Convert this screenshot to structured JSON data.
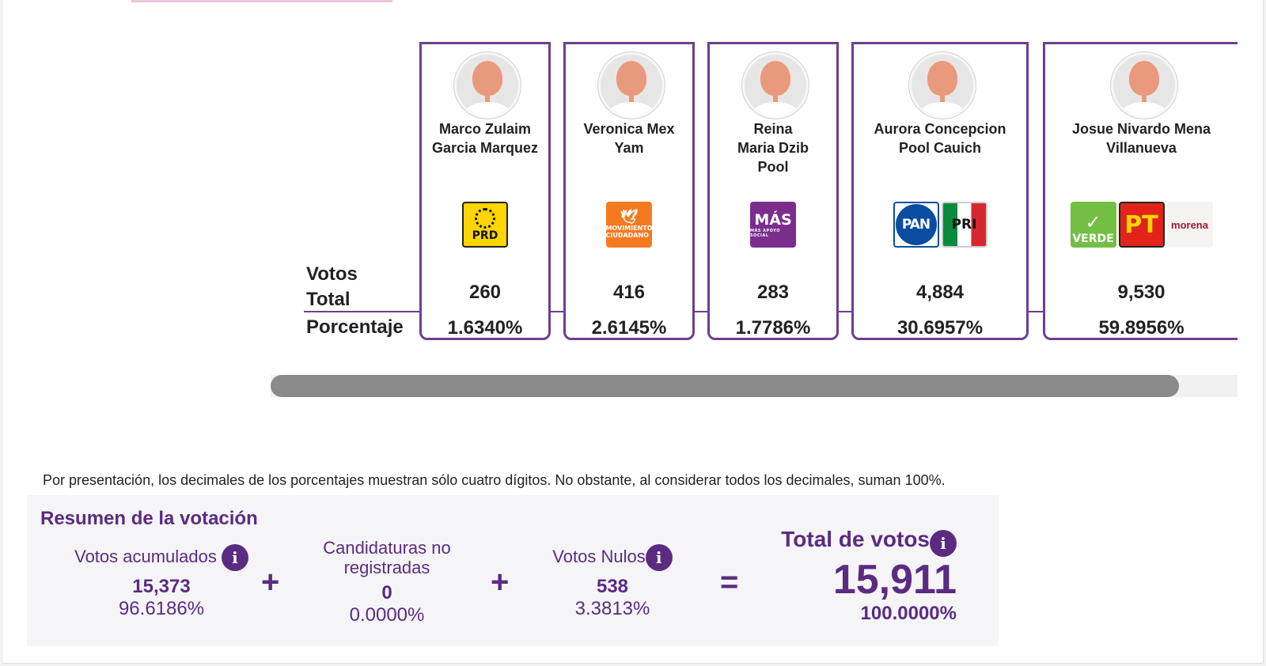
{
  "row_labels": {
    "votos_total": "Votos Total",
    "porcentaje": "Porcentaje"
  },
  "candidates": [
    {
      "name": "Marco Zulaim Garcia Marquez",
      "parties": [
        "PRD"
      ],
      "votes": "260",
      "percent": "1.6340%"
    },
    {
      "name": "Veronica Mex Yam",
      "parties": [
        "MOVIMIENTO CIUDADANO"
      ],
      "votes": "416",
      "percent": "2.6145%"
    },
    {
      "name": "Reina Maria Dzib Pool",
      "parties": [
        "MÁS"
      ],
      "votes": "283",
      "percent": "1.7786%"
    },
    {
      "name": "Aurora Concepcion Pool Cauich",
      "parties": [
        "PAN",
        "PRI"
      ],
      "votes": "4,884",
      "percent": "30.6957%"
    },
    {
      "name": "Josue Nivardo Mena Villanueva",
      "parties": [
        "VERDE",
        "PT",
        "morena"
      ],
      "votes": "9,530",
      "percent": "59.8956%"
    }
  ],
  "party_logos": {
    "prd": "PRD",
    "mc": "MOVIMIENTO CIUDADANO",
    "mas": "MÁS",
    "mas_sub": "MÁS APOYO SOCIAL",
    "pan": "PAN",
    "pri": "PRI",
    "verde": "VERDE",
    "pt": "PT",
    "morena": "morena"
  },
  "note": "Por presentación, los decimales de los porcentajes muestran sólo cuatro dígitos. No obstante, al considerar todos los decimales, suman 100%.",
  "summary": {
    "title": "Resumen de la votación",
    "acumulados": {
      "label": "Votos acumulados",
      "value": "15,373",
      "percent": "96.6186%"
    },
    "no_registradas": {
      "label": "Candidaturas no registradas",
      "value": "0",
      "percent": "0.0000%"
    },
    "nulos": {
      "label": "Votos Nulos",
      "value": "538",
      "percent": "3.3813%"
    },
    "total": {
      "label": "Total de votos",
      "value": "15,911",
      "percent": "100.0000%"
    },
    "plus": "+",
    "equals": "=",
    "info_icon": "i"
  },
  "colors": {
    "accent": "#5b2b82",
    "border": "#6b3f8f"
  }
}
